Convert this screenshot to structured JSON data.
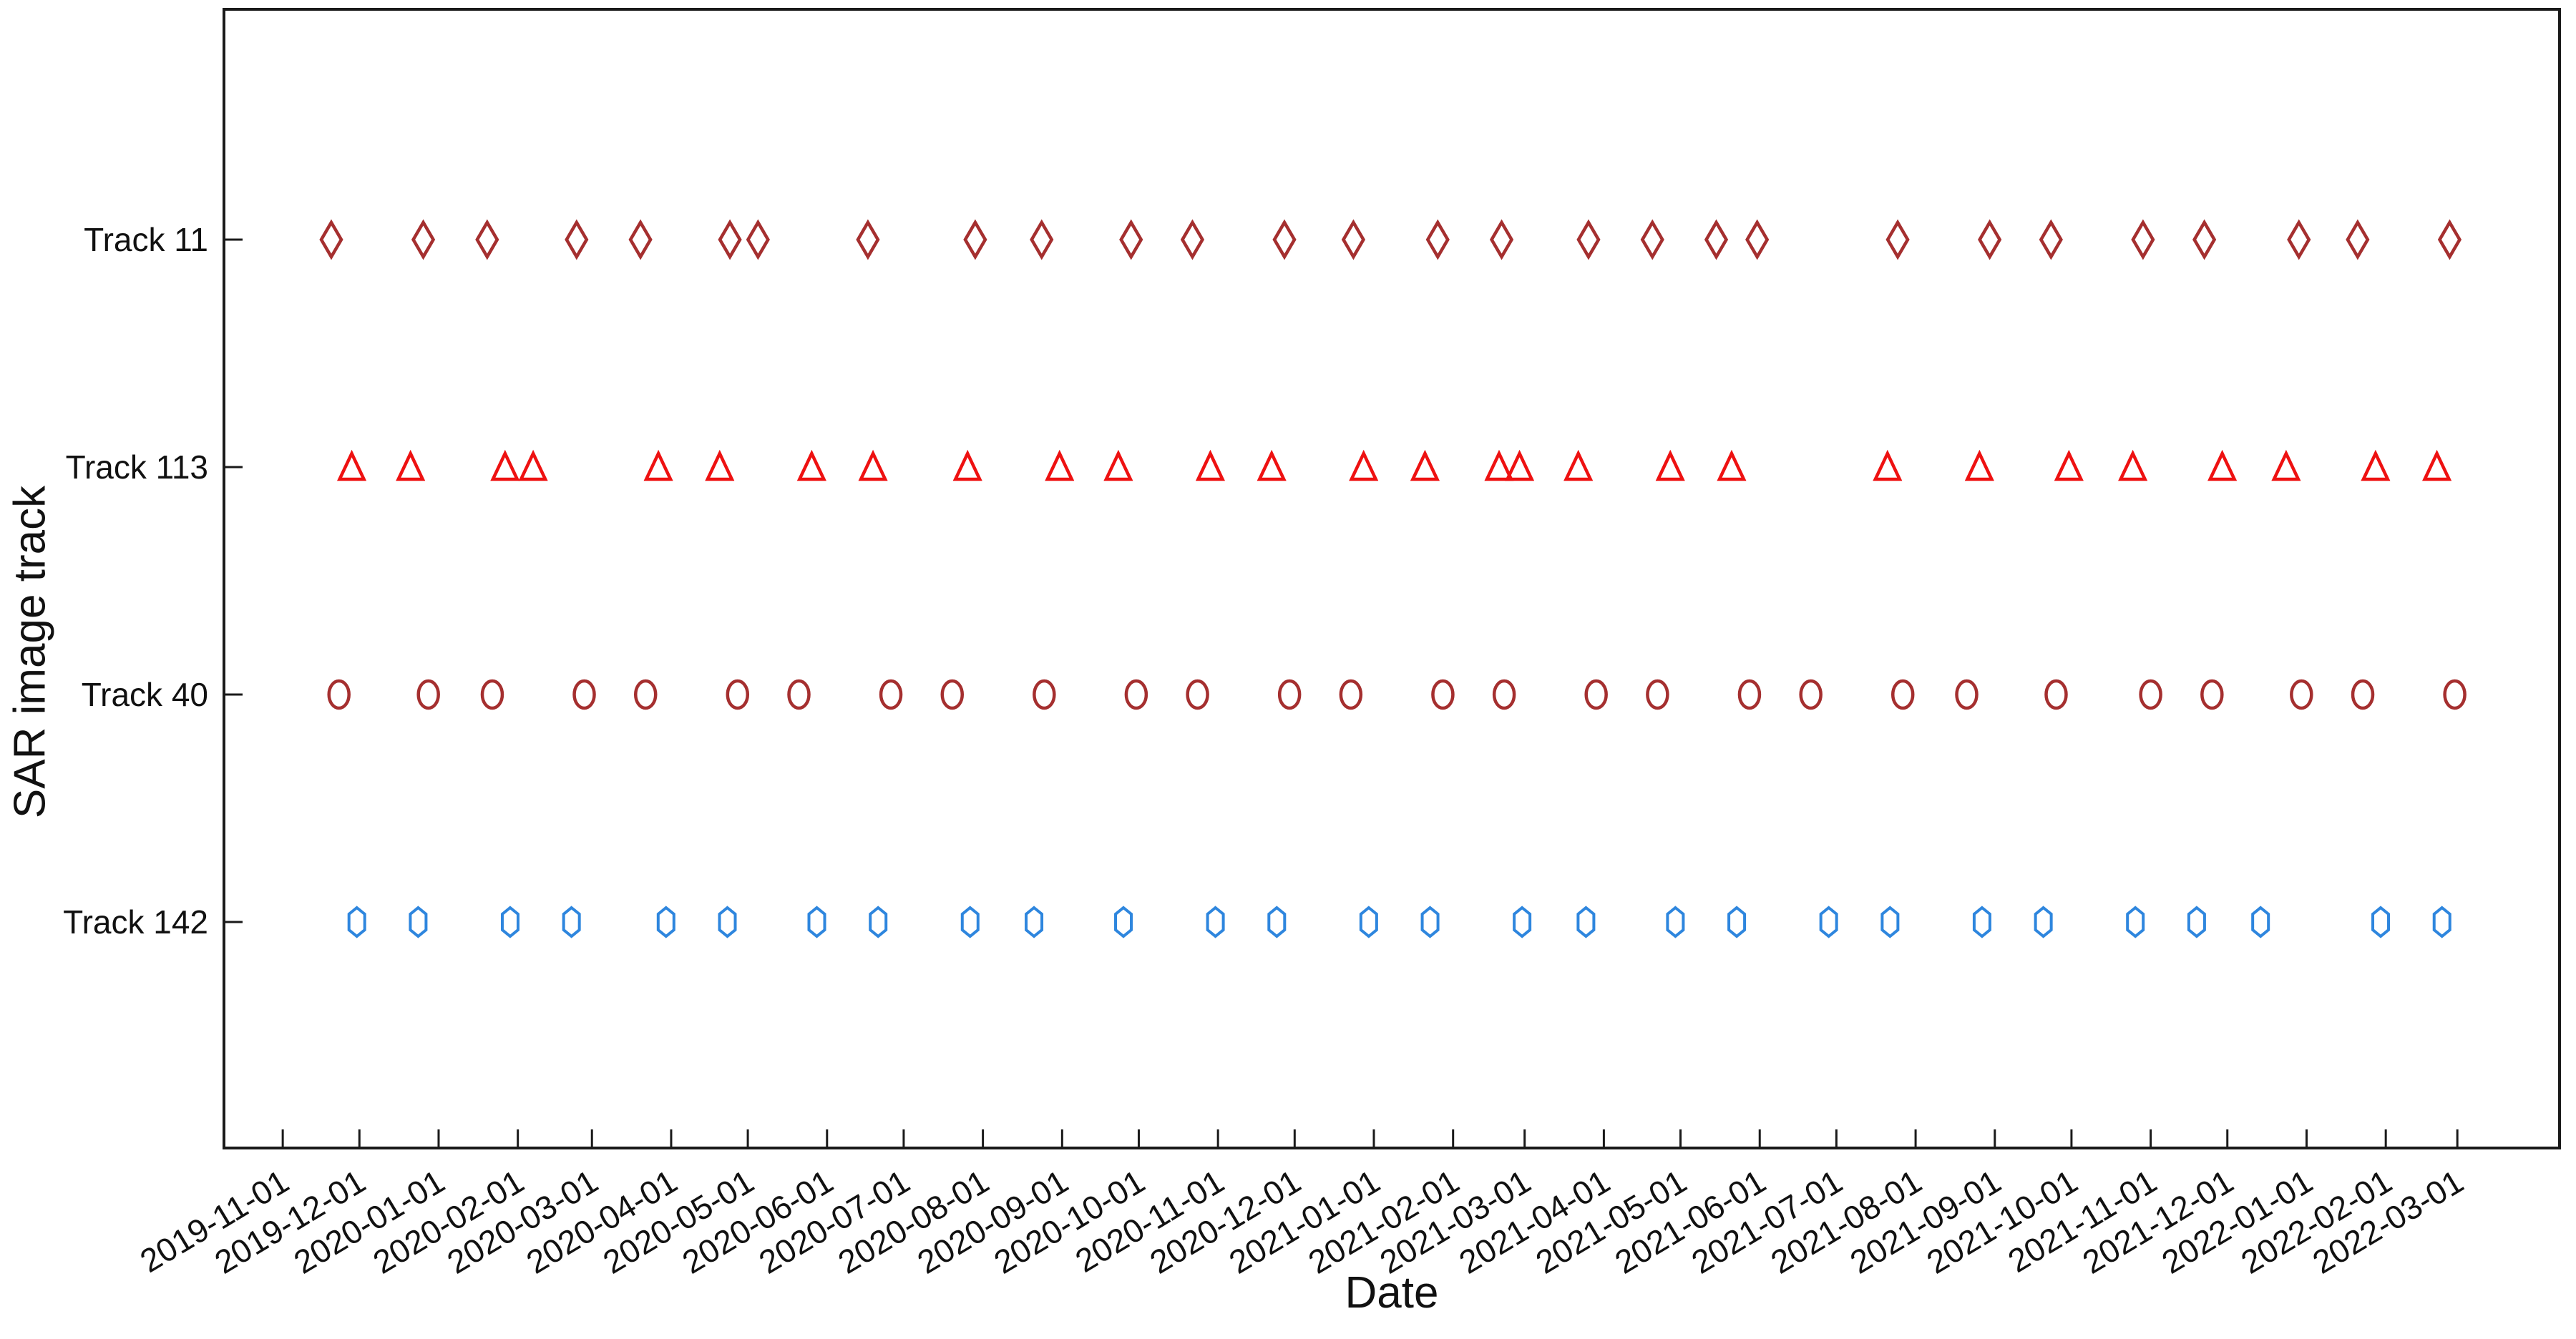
{
  "chart_data": {
    "type": "scatter",
    "title": "",
    "xlabel": "Date",
    "ylabel": "SAR image track",
    "grid": false,
    "legend": "none",
    "ticks_direction": "in",
    "axis_color": "#1a1a1a",
    "x_range": [
      "2019-10-09",
      "2022-04-10"
    ],
    "x_ticks": [
      "2019-11-01",
      "2019-12-01",
      "2020-01-01",
      "2020-02-01",
      "2020-03-01",
      "2020-04-01",
      "2020-05-01",
      "2020-06-01",
      "2020-07-01",
      "2020-08-01",
      "2020-09-01",
      "2020-10-01",
      "2020-11-01",
      "2020-12-01",
      "2021-01-01",
      "2021-02-01",
      "2021-03-01",
      "2021-04-01",
      "2021-05-01",
      "2021-06-01",
      "2021-07-01",
      "2021-08-01",
      "2021-09-01",
      "2021-10-01",
      "2021-11-01",
      "2021-12-01",
      "2022-01-01",
      "2022-02-01",
      "2022-03-01"
    ],
    "x_tick_rotation_deg": 31,
    "y_categories": [
      "Track 11",
      "Track 113",
      "Track 40",
      "Track 142"
    ],
    "series": [
      {
        "name": "Track 11",
        "marker": "thin-diamond",
        "color": "#a52f2f",
        "dates": [
          "2019-11-20",
          "2019-12-26",
          "2020-01-20",
          "2020-02-24",
          "2020-03-20",
          "2020-04-24",
          "2020-05-05",
          "2020-06-17",
          "2020-07-29",
          "2020-08-24",
          "2020-09-28",
          "2020-10-22",
          "2020-11-27",
          "2020-12-24",
          "2021-01-26",
          "2021-02-20",
          "2021-03-26",
          "2021-04-20",
          "2021-05-15",
          "2021-05-31",
          "2021-07-25",
          "2021-08-30",
          "2021-09-23",
          "2021-10-29",
          "2021-11-22",
          "2021-12-29",
          "2022-01-21",
          "2022-02-26"
        ]
      },
      {
        "name": "Track 113",
        "marker": "triangle-up",
        "color": "#ee1111",
        "dates": [
          "2019-11-28",
          "2019-12-21",
          "2020-01-27",
          "2020-02-07",
          "2020-03-27",
          "2020-04-20",
          "2020-05-26",
          "2020-06-19",
          "2020-07-26",
          "2020-08-31",
          "2020-09-23",
          "2020-10-29",
          "2020-11-22",
          "2020-12-28",
          "2021-01-21",
          "2021-02-19",
          "2021-02-27",
          "2021-03-22",
          "2021-04-27",
          "2021-05-21",
          "2021-07-21",
          "2021-08-26",
          "2021-09-30",
          "2021-10-25",
          "2021-11-29",
          "2021-12-24",
          "2022-01-28",
          "2022-02-21"
        ]
      },
      {
        "name": "Track 40",
        "marker": "circle",
        "color": "#a52f2f",
        "dates": [
          "2019-11-23",
          "2019-12-28",
          "2020-01-22",
          "2020-02-27",
          "2020-03-22",
          "2020-04-27",
          "2020-05-21",
          "2020-06-26",
          "2020-07-20",
          "2020-08-25",
          "2020-09-30",
          "2020-10-24",
          "2020-11-29",
          "2020-12-23",
          "2021-01-28",
          "2021-02-21",
          "2021-03-29",
          "2021-04-22",
          "2021-05-28",
          "2021-06-21",
          "2021-07-27",
          "2021-08-21",
          "2021-09-25",
          "2021-11-01",
          "2021-11-25",
          "2021-12-30",
          "2022-01-23",
          "2022-02-28"
        ]
      },
      {
        "name": "Track 142",
        "marker": "hexagon",
        "color": "#2e86de",
        "dates": [
          "2019-11-30",
          "2019-12-24",
          "2020-01-29",
          "2020-02-22",
          "2020-03-30",
          "2020-04-23",
          "2020-05-28",
          "2020-06-21",
          "2020-07-27",
          "2020-08-21",
          "2020-09-25",
          "2020-10-31",
          "2020-11-24",
          "2020-12-30",
          "2021-01-23",
          "2021-02-28",
          "2021-03-25",
          "2021-04-29",
          "2021-05-23",
          "2021-06-28",
          "2021-07-22",
          "2021-08-27",
          "2021-09-20",
          "2021-10-26",
          "2021-11-19",
          "2021-12-14",
          "2022-01-30",
          "2022-02-23"
        ]
      }
    ]
  }
}
